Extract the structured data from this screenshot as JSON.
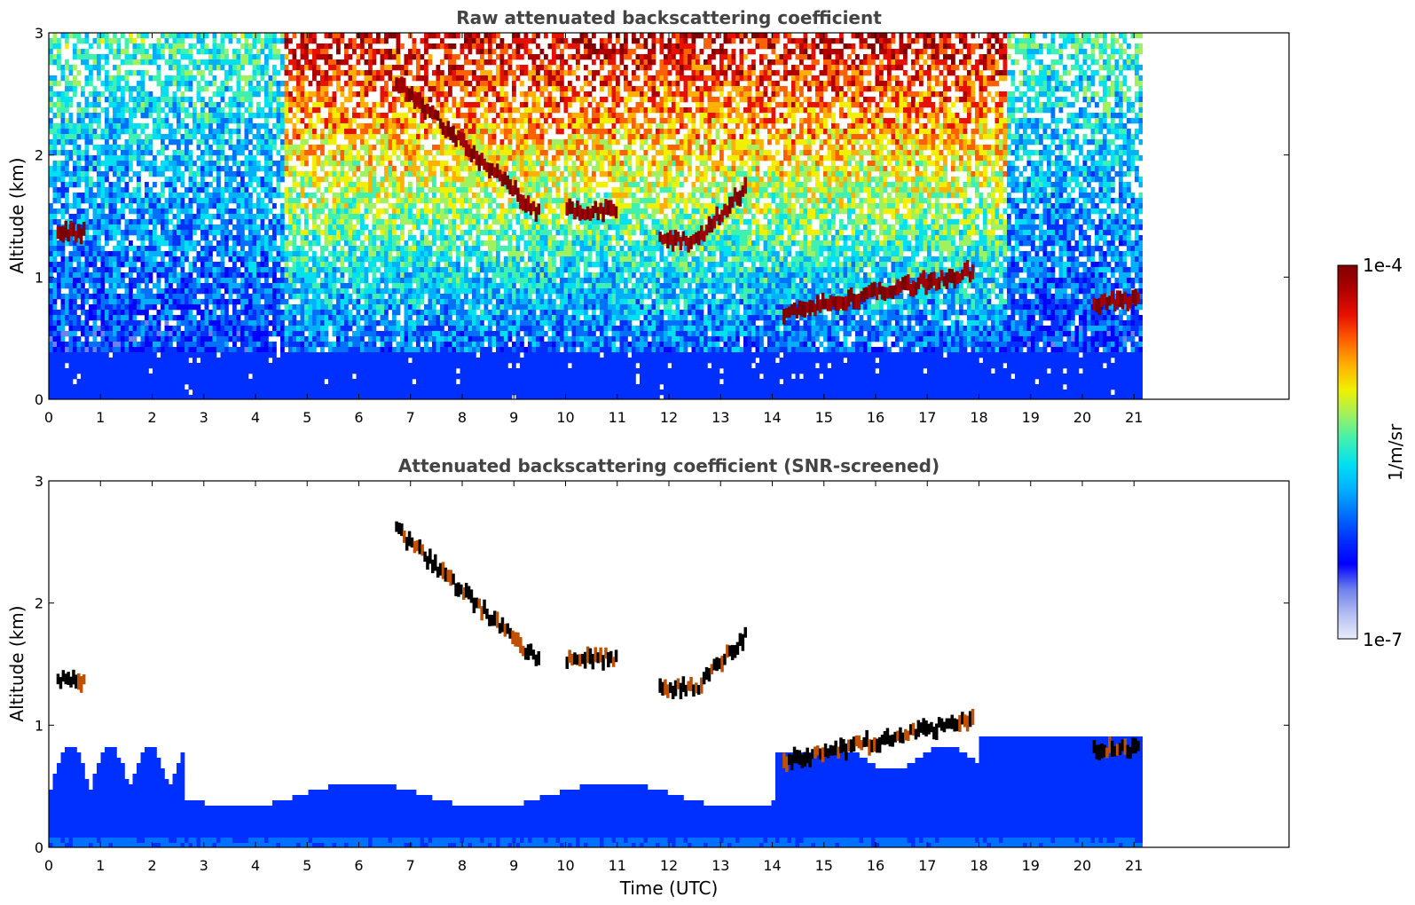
{
  "chart_data": [
    {
      "type": "heatmap",
      "title": "Raw attenuated backscattering coefficient",
      "xlabel": "",
      "ylabel": "Altitude (km)",
      "xlim": [
        0,
        24
      ],
      "ylim": [
        0,
        3
      ],
      "x_ticks": [
        0,
        1,
        2,
        3,
        4,
        5,
        6,
        7,
        8,
        9,
        10,
        11,
        12,
        13,
        14,
        15,
        16,
        17,
        18,
        19,
        20,
        21
      ],
      "y_ticks": [
        0,
        1,
        2,
        3
      ],
      "data_end_hour": 21.15,
      "scale": "log",
      "layers": [
        {
          "kind": "cloud",
          "hour_start": 0.15,
          "hour_end": 0.7,
          "alt_km": 1.37
        },
        {
          "kind": "cloud",
          "hour_start": 6.7,
          "hour_end": 9.5,
          "alt_start_km": 2.6,
          "alt_end_km": 1.5
        },
        {
          "kind": "cloud",
          "hour_start": 10.0,
          "hour_end": 11.0,
          "alt_km": 1.55
        },
        {
          "kind": "cloud",
          "hour_start": 11.8,
          "hour_end": 12.5,
          "alt_km": 1.3
        },
        {
          "kind": "cloud",
          "hour_start": 12.5,
          "hour_end": 13.5,
          "alt_start_km": 1.3,
          "alt_end_km": 1.75
        },
        {
          "kind": "cloud",
          "hour_start": 14.2,
          "hour_end": 17.9,
          "alt_start_km": 0.7,
          "alt_end_km": 1.05
        },
        {
          "kind": "cloud",
          "hour_start": 20.2,
          "hour_end": 21.1,
          "alt_km": 0.8
        }
      ]
    },
    {
      "type": "heatmap",
      "title": "Attenuated backscattering coefficient (SNR-screened)",
      "xlabel": "Time (UTC)",
      "ylabel": "Altitude (km)",
      "xlim": [
        0,
        24
      ],
      "ylim": [
        0,
        3
      ],
      "x_ticks": [
        0,
        1,
        2,
        3,
        4,
        5,
        6,
        7,
        8,
        9,
        10,
        11,
        12,
        13,
        14,
        15,
        16,
        17,
        18,
        19,
        20,
        21
      ],
      "y_ticks": [
        0,
        1,
        2,
        3
      ],
      "data_end_hour": 21.15,
      "scale": "log"
    }
  ],
  "colorbar": {
    "label": "1/m/sr",
    "max_label": "1e-4",
    "min_label": "1e-7",
    "min": 1e-07,
    "max": 0.0001,
    "colors": [
      "#e9ecfa",
      "#b3bdf2",
      "#6d80ec",
      "#0000ff",
      "#0030ff",
      "#0070ff",
      "#00b0ff",
      "#00e0f0",
      "#40f0b0",
      "#a0f060",
      "#f0f000",
      "#ffb000",
      "#ff6000",
      "#e81000",
      "#b00000",
      "#800000"
    ]
  }
}
